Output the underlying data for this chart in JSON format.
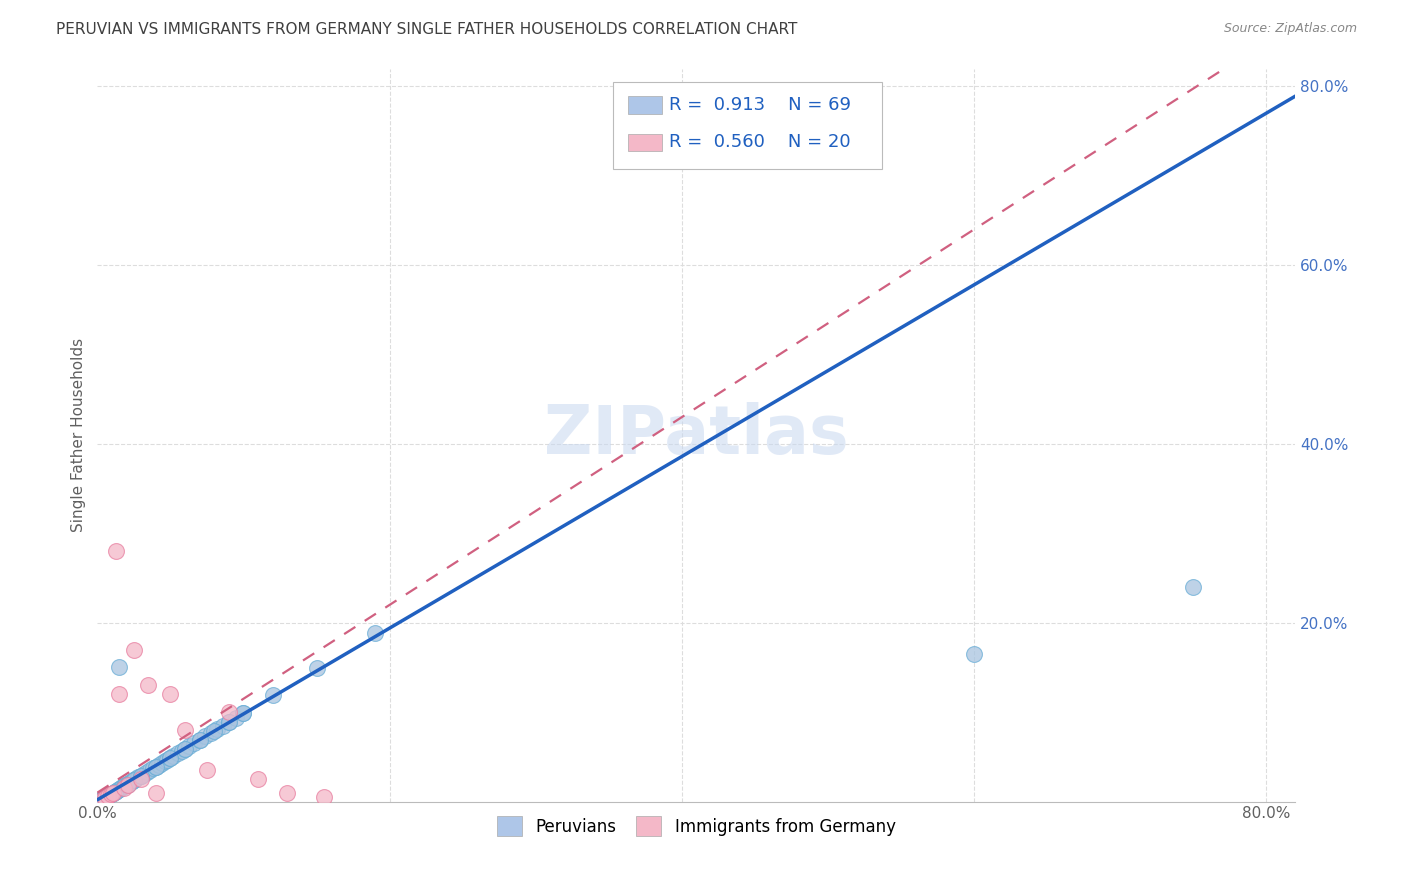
{
  "title": "PERUVIAN VS IMMIGRANTS FROM GERMANY SINGLE FATHER HOUSEHOLDS CORRELATION CHART",
  "source": "Source: ZipAtlas.com",
  "ylabel": "Single Father Households",
  "peruvian_color_face": "#a8c4e0",
  "peruvian_color_edge": "#6aaed6",
  "germany_color_face": "#f4b8c8",
  "germany_color_edge": "#e87fa0",
  "legend_blue_color": "#aec6e8",
  "legend_pink_color": "#f4b8c8",
  "R_peruvian": 0.913,
  "N_peruvian": 69,
  "R_germany": 0.56,
  "N_germany": 20,
  "watermark": "ZIPatlas",
  "background_color": "#ffffff",
  "grid_color": "#dddddd",
  "title_color": "#404040",
  "axis_label_color": "#606060",
  "peruvian_scatter_x": [
    0.003,
    0.004,
    0.005,
    0.006,
    0.007,
    0.008,
    0.009,
    0.01,
    0.011,
    0.012,
    0.013,
    0.014,
    0.015,
    0.016,
    0.017,
    0.018,
    0.019,
    0.02,
    0.021,
    0.022,
    0.023,
    0.024,
    0.025,
    0.026,
    0.028,
    0.03,
    0.032,
    0.034,
    0.036,
    0.038,
    0.04,
    0.042,
    0.044,
    0.046,
    0.048,
    0.05,
    0.052,
    0.055,
    0.058,
    0.06,
    0.063,
    0.066,
    0.07,
    0.074,
    0.078,
    0.082,
    0.086,
    0.09,
    0.095,
    0.1,
    0.005,
    0.008,
    0.012,
    0.015,
    0.02,
    0.025,
    0.03,
    0.04,
    0.05,
    0.06,
    0.07,
    0.08,
    0.09,
    0.1,
    0.12,
    0.15,
    0.19,
    0.6,
    0.75
  ],
  "peruvian_scatter_y": [
    0.003,
    0.004,
    0.005,
    0.006,
    0.007,
    0.007,
    0.008,
    0.009,
    0.01,
    0.011,
    0.012,
    0.013,
    0.014,
    0.015,
    0.016,
    0.017,
    0.018,
    0.019,
    0.02,
    0.021,
    0.022,
    0.023,
    0.024,
    0.025,
    0.027,
    0.029,
    0.031,
    0.033,
    0.035,
    0.037,
    0.039,
    0.041,
    0.043,
    0.045,
    0.047,
    0.049,
    0.051,
    0.054,
    0.057,
    0.059,
    0.062,
    0.065,
    0.069,
    0.073,
    0.077,
    0.081,
    0.085,
    0.089,
    0.094,
    0.099,
    0.004,
    0.007,
    0.011,
    0.15,
    0.019,
    0.024,
    0.029,
    0.039,
    0.049,
    0.059,
    0.069,
    0.079,
    0.089,
    0.099,
    0.119,
    0.149,
    0.189,
    0.165,
    0.24
  ],
  "germany_scatter_x": [
    0.003,
    0.005,
    0.007,
    0.009,
    0.011,
    0.013,
    0.015,
    0.018,
    0.021,
    0.025,
    0.03,
    0.035,
    0.04,
    0.05,
    0.06,
    0.075,
    0.09,
    0.11,
    0.13,
    0.155
  ],
  "germany_scatter_y": [
    0.002,
    0.004,
    0.006,
    0.008,
    0.01,
    0.28,
    0.12,
    0.015,
    0.018,
    0.17,
    0.025,
    0.13,
    0.01,
    0.12,
    0.08,
    0.035,
    0.1,
    0.025,
    0.01,
    0.005
  ],
  "line_peru_color": "#2060c0",
  "line_germany_color": "#d06080",
  "right_tick_color": "#4472c4"
}
